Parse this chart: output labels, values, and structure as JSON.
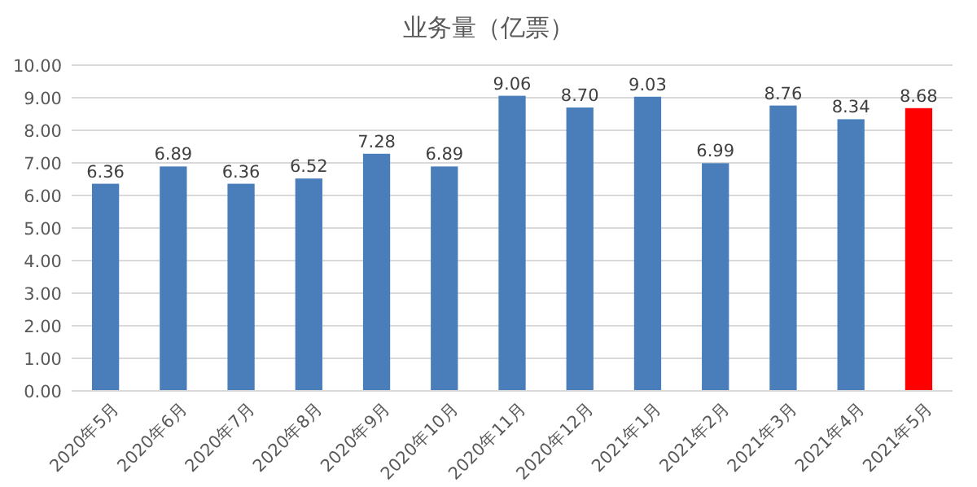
{
  "chart_data": {
    "type": "bar",
    "title": "业务量（亿票）",
    "categories": [
      "2020年5月",
      "2020年6月",
      "2020年7月",
      "2020年8月",
      "2020年9月",
      "2020年10月",
      "2020年11月",
      "2020年12月",
      "2021年1月",
      "2021年2月",
      "2021年3月",
      "2021年4月",
      "2021年5月"
    ],
    "values": [
      6.36,
      6.89,
      6.36,
      6.52,
      7.28,
      6.89,
      9.06,
      8.7,
      9.03,
      6.99,
      8.76,
      8.34,
      8.68
    ],
    "colors": [
      "#4a7ebb",
      "#4a7ebb",
      "#4a7ebb",
      "#4a7ebb",
      "#4a7ebb",
      "#4a7ebb",
      "#4a7ebb",
      "#4a7ebb",
      "#4a7ebb",
      "#4a7ebb",
      "#4a7ebb",
      "#4a7ebb",
      "#ff0000"
    ],
    "value_labels": [
      "6.36",
      "6.89",
      "6.36",
      "6.52",
      "7.28",
      "6.89",
      "9.06",
      "8.70",
      "9.03",
      "6.99",
      "8.76",
      "8.34",
      "8.68"
    ],
    "ylim": [
      0,
      10
    ],
    "yticks": [
      {
        "value": 0,
        "label": "0.00"
      },
      {
        "value": 1,
        "label": "1.00"
      },
      {
        "value": 2,
        "label": "2.00"
      },
      {
        "value": 3,
        "label": "3.00"
      },
      {
        "value": 4,
        "label": "4.00"
      },
      {
        "value": 5,
        "label": "5.00"
      },
      {
        "value": 6,
        "label": "6.00"
      },
      {
        "value": 7,
        "label": "7.00"
      },
      {
        "value": 8,
        "label": "8.00"
      },
      {
        "value": 9,
        "label": "9.00"
      },
      {
        "value": 10,
        "label": "10.00"
      }
    ],
    "grid": "y"
  }
}
